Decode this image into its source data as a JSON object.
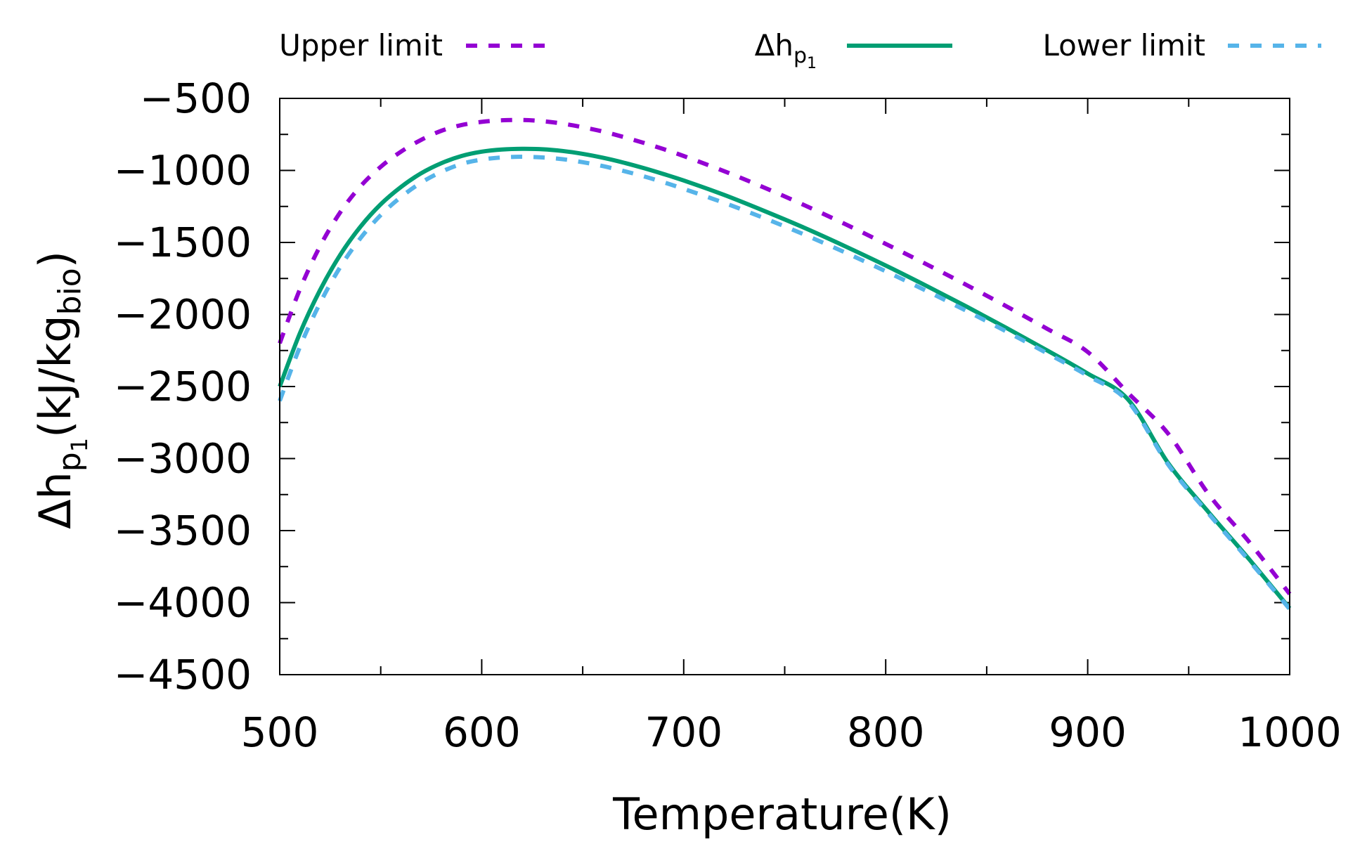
{
  "chart_data": {
    "type": "line",
    "title": "",
    "xlabel": "Temperature(K)",
    "ylabel": {
      "prefix": "Δh",
      "sub": "p",
      "subsub": "1",
      "middle": "(kJ/kg",
      "sub2": "bio",
      "suffix": ")"
    },
    "xlim": [
      500,
      1000
    ],
    "ylim": [
      -4500,
      -500
    ],
    "xticks": [
      500,
      600,
      700,
      800,
      900,
      1000
    ],
    "xtick_labels": [
      "500",
      "600",
      "700",
      "800",
      "900",
      "1000"
    ],
    "yticks": [
      -500,
      -1000,
      -1500,
      -2000,
      -2500,
      -3000,
      -3500,
      -4000,
      -4500
    ],
    "ytick_labels": [
      "−500",
      "−1000",
      "−1500",
      "−2000",
      "−2500",
      "−3000",
      "−3500",
      "−4000",
      "−4500"
    ],
    "grid": false,
    "legend_placement": "top, outside, horizontal",
    "legend": {
      "upper": "Upper limit",
      "main": {
        "prefix": "Δh",
        "sub": "p",
        "subsub": "1"
      },
      "lower": "Lower limit"
    },
    "x": [
      500,
      510,
      520,
      530,
      540,
      550,
      560,
      570,
      580,
      590,
      600,
      610,
      620,
      630,
      640,
      650,
      660,
      670,
      680,
      690,
      700,
      720,
      740,
      760,
      780,
      800,
      820,
      840,
      860,
      880,
      900,
      920,
      940,
      960,
      980,
      1000
    ],
    "series": [
      {
        "name": "Upper limit",
        "color": "#9400d3",
        "dash": "dashed",
        "values": [
          -2200,
          -1825,
          -1525,
          -1290,
          -1110,
          -975,
          -870,
          -788,
          -725,
          -685,
          -663,
          -652,
          -650,
          -658,
          -675,
          -700,
          -730,
          -767,
          -808,
          -852,
          -900,
          -1005,
          -1120,
          -1243,
          -1373,
          -1510,
          -1650,
          -1795,
          -1945,
          -2100,
          -2260,
          -2545,
          -2830,
          -3250,
          -3580,
          -3940
        ]
      },
      {
        "name": "Δhp1",
        "color": "#009e73",
        "dash": "solid",
        "values": [
          -2500,
          -2130,
          -1830,
          -1585,
          -1390,
          -1235,
          -1115,
          -1020,
          -950,
          -900,
          -870,
          -855,
          -850,
          -853,
          -865,
          -885,
          -912,
          -945,
          -983,
          -1025,
          -1070,
          -1170,
          -1282,
          -1400,
          -1527,
          -1660,
          -1800,
          -1945,
          -2095,
          -2250,
          -2410,
          -2590,
          -3035,
          -3375,
          -3700,
          -4040
        ]
      },
      {
        "name": "Lower limit",
        "color": "#56b4e9",
        "dash": "dashed",
        "values": [
          -2600,
          -2225,
          -1920,
          -1670,
          -1470,
          -1310,
          -1185,
          -1085,
          -1010,
          -955,
          -925,
          -910,
          -905,
          -910,
          -922,
          -943,
          -970,
          -1003,
          -1040,
          -1082,
          -1128,
          -1225,
          -1332,
          -1447,
          -1570,
          -1700,
          -1835,
          -1975,
          -2120,
          -2270,
          -2425,
          -2605,
          -3045,
          -3385,
          -3710,
          -4045
        ]
      }
    ]
  }
}
